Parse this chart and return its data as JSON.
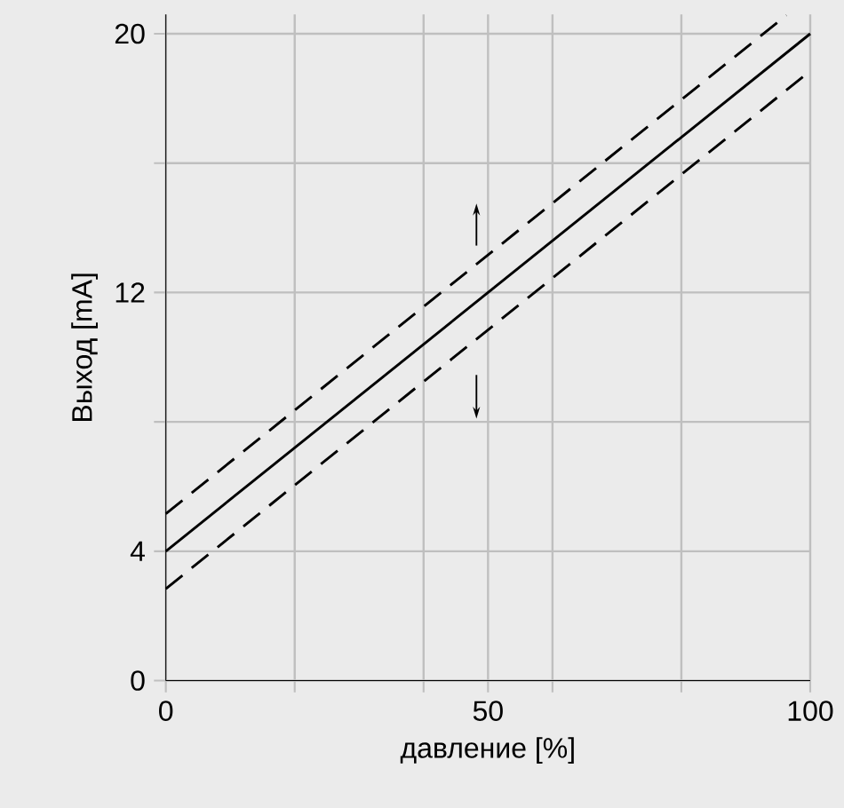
{
  "chart_data": {
    "type": "line",
    "xlabel": "давление [%]",
    "ylabel": "Выход [mA]",
    "xlim": [
      0,
      100
    ],
    "ylim": [
      0,
      20.6
    ],
    "xticks": [
      0,
      {
        "value": 20,
        "label": null
      },
      {
        "value": 40,
        "label": null
      },
      50,
      {
        "value": 60,
        "label": null
      },
      {
        "value": 80,
        "label": null
      },
      100
    ],
    "yticks": [
      0,
      4,
      {
        "value": 8,
        "label": null
      },
      12,
      {
        "value": 16,
        "label": null
      },
      20
    ],
    "grid": true,
    "marker": "none",
    "series": [
      {
        "color": "#000000",
        "line_style": "dashed",
        "x": [
          0,
          96.3
        ],
        "values": [
          5.16,
          20.57
        ]
      },
      {
        "color": "#000000",
        "line_style": "solid",
        "x": [
          0,
          100
        ],
        "values": [
          4,
          20
        ]
      },
      {
        "color": "#000000",
        "line_style": "dashed",
        "x": [
          0,
          100
        ],
        "values": [
          2.84,
          18.85
        ]
      }
    ]
  }
}
